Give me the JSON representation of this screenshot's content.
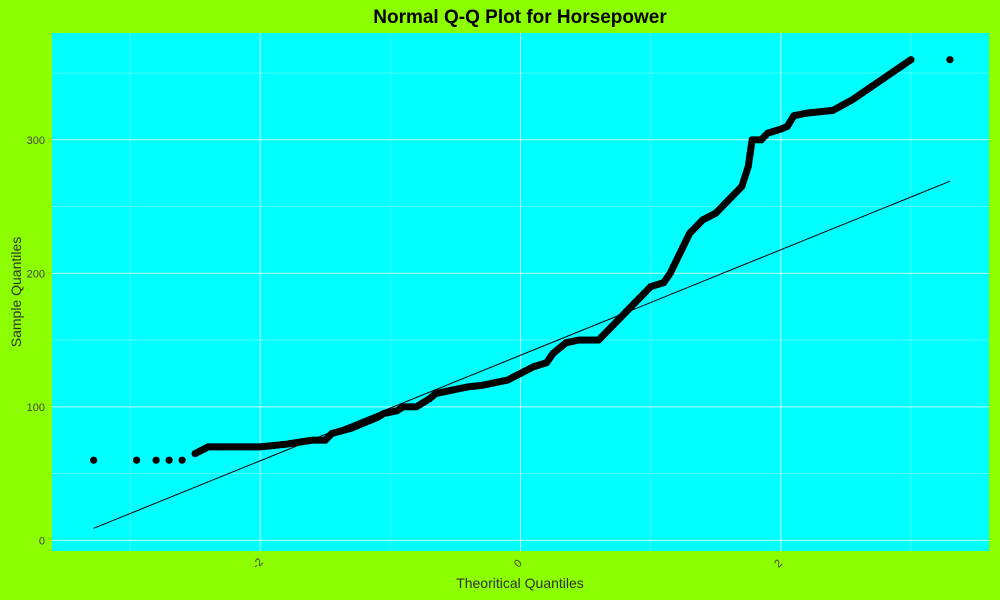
{
  "chart_data": {
    "type": "scatter",
    "title": "Normal Q-Q Plot for Horsepower",
    "xlabel": "Theoritical Quantiles",
    "ylabel": "Sample Quantiles",
    "xlim": [
      -3.6,
      3.6
    ],
    "ylim": [
      -8,
      380
    ],
    "x_ticks": [
      -2,
      0,
      2
    ],
    "x_tick_labels": [
      "-2",
      "0",
      "2"
    ],
    "y_ticks": [
      0,
      100,
      200,
      300
    ],
    "y_tick_labels": [
      "0",
      "100",
      "200",
      "300"
    ],
    "grid": true,
    "colors": {
      "background": "#8cff00",
      "panel": "#00ffff",
      "points": "#000000",
      "ref_line": "#000000"
    },
    "reference_line": {
      "x": [
        -3.28,
        3.3
      ],
      "y": [
        9,
        269
      ]
    },
    "sample_size": 392,
    "quantile_knots": [
      [
        -3.28,
        60
      ],
      [
        -2.95,
        60
      ],
      [
        -2.8,
        60
      ],
      [
        -2.7,
        60
      ],
      [
        -2.6,
        60
      ],
      [
        -2.5,
        65
      ],
      [
        -2.4,
        70
      ],
      [
        -2.2,
        70
      ],
      [
        -2.0,
        70
      ],
      [
        -1.8,
        72
      ],
      [
        -1.6,
        75
      ],
      [
        -1.5,
        75
      ],
      [
        -1.45,
        80
      ],
      [
        -1.3,
        84
      ],
      [
        -1.2,
        88
      ],
      [
        -1.1,
        92
      ],
      [
        -1.05,
        95
      ],
      [
        -0.95,
        97
      ],
      [
        -0.9,
        100
      ],
      [
        -0.8,
        100
      ],
      [
        -0.75,
        103
      ],
      [
        -0.7,
        106
      ],
      [
        -0.65,
        110
      ],
      [
        -0.5,
        113
      ],
      [
        -0.4,
        115
      ],
      [
        -0.3,
        116
      ],
      [
        -0.2,
        118
      ],
      [
        -0.1,
        120
      ],
      [
        0.0,
        125
      ],
      [
        0.1,
        130
      ],
      [
        0.2,
        133
      ],
      [
        0.25,
        140
      ],
      [
        0.35,
        148
      ],
      [
        0.45,
        150
      ],
      [
        0.55,
        150
      ],
      [
        0.6,
        150
      ],
      [
        0.65,
        155
      ],
      [
        0.7,
        160
      ],
      [
        0.75,
        165
      ],
      [
        0.8,
        170
      ],
      [
        0.85,
        175
      ],
      [
        0.9,
        180
      ],
      [
        0.95,
        185
      ],
      [
        1.0,
        190
      ],
      [
        1.1,
        193
      ],
      [
        1.15,
        200
      ],
      [
        1.2,
        210
      ],
      [
        1.25,
        220
      ],
      [
        1.3,
        230
      ],
      [
        1.4,
        240
      ],
      [
        1.5,
        245
      ],
      [
        1.6,
        255
      ],
      [
        1.65,
        260
      ],
      [
        1.7,
        265
      ],
      [
        1.75,
        280
      ],
      [
        1.78,
        300
      ],
      [
        1.85,
        300
      ],
      [
        1.9,
        305
      ],
      [
        2.0,
        308
      ],
      [
        2.05,
        310
      ],
      [
        2.1,
        318
      ],
      [
        2.2,
        320
      ],
      [
        2.4,
        322
      ],
      [
        2.55,
        330
      ],
      [
        2.7,
        340
      ],
      [
        3.0,
        360
      ],
      [
        3.3,
        360
      ]
    ]
  }
}
